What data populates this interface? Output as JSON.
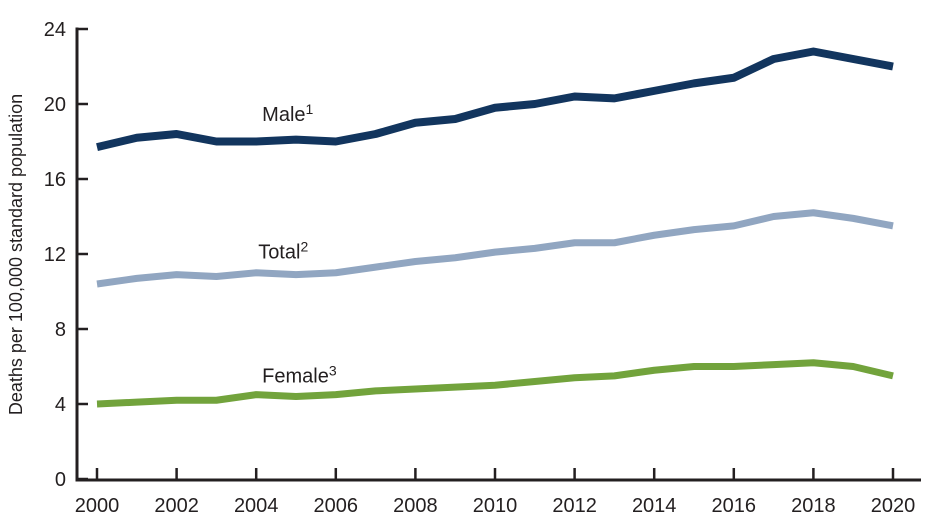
{
  "figure": {
    "y_axis_title": "Deaths per 100,000 standard population"
  },
  "chart_data": {
    "type": "line",
    "title": "",
    "xlabel": "",
    "ylabel": "Deaths per 100,000 standard population",
    "ylim": [
      0,
      24
    ],
    "yticks": [
      0,
      4,
      8,
      12,
      16,
      20,
      24
    ],
    "xlim": [
      2000,
      2020
    ],
    "xticks": [
      2000,
      2002,
      2004,
      2006,
      2008,
      2010,
      2012,
      2014,
      2016,
      2018,
      2020
    ],
    "grid": false,
    "legend_position": "inline-labels",
    "axis_color": "#231f20",
    "x": [
      2000,
      2001,
      2002,
      2003,
      2004,
      2005,
      2006,
      2007,
      2008,
      2009,
      2010,
      2011,
      2012,
      2013,
      2014,
      2015,
      2016,
      2017,
      2018,
      2019,
      2020
    ],
    "series": [
      {
        "name": "Male",
        "superscript": "1",
        "color": "#12355e",
        "stroke_width": 8,
        "label_anchor": {
          "year": 2004.15,
          "value": 19.1
        },
        "values": [
          17.7,
          18.2,
          18.4,
          18.0,
          18.0,
          18.1,
          18.0,
          18.4,
          19.0,
          19.2,
          19.8,
          20.0,
          20.4,
          20.3,
          20.7,
          21.1,
          21.4,
          22.4,
          22.8,
          22.4,
          22.0
        ]
      },
      {
        "name": "Total",
        "superscript": "2",
        "color": "#91a6c1",
        "stroke_width": 7,
        "label_anchor": {
          "year": 2004.05,
          "value": 11.75
        },
        "values": [
          10.4,
          10.7,
          10.9,
          10.8,
          11.0,
          10.9,
          11.0,
          11.3,
          11.6,
          11.8,
          12.1,
          12.3,
          12.6,
          12.6,
          13.0,
          13.3,
          13.5,
          14.0,
          14.2,
          13.9,
          13.5
        ]
      },
      {
        "name": "Female",
        "superscript": "3",
        "color": "#72a33c",
        "stroke_width": 7,
        "label_anchor": {
          "year": 2004.15,
          "value": 5.15
        },
        "values": [
          4.0,
          4.1,
          4.2,
          4.2,
          4.5,
          4.4,
          4.5,
          4.7,
          4.8,
          4.9,
          5.0,
          5.2,
          5.4,
          5.5,
          5.8,
          6.0,
          6.0,
          6.1,
          6.2,
          6.0,
          5.5
        ]
      }
    ]
  }
}
